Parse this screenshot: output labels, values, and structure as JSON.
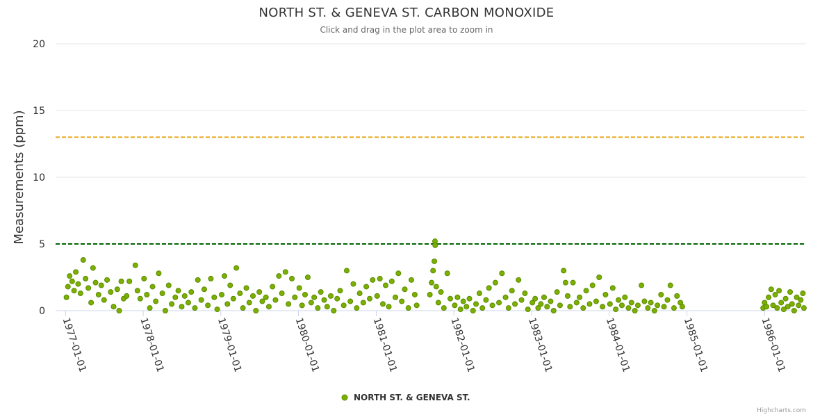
{
  "chart_data": {
    "type": "scatter",
    "title": "NORTH ST. & GENEVA ST. CARBON MONOXIDE",
    "subtitle": "Click and drag in the plot area to zoom in",
    "ylabel": "Measurements (ppm)",
    "xlabel": "",
    "ylim": [
      0,
      20
    ],
    "yticks": [
      0,
      5,
      10,
      15,
      20
    ],
    "xticks": [
      "1977-01-01",
      "1978-01-01",
      "1979-01-01",
      "1980-01-01",
      "1981-01-01",
      "1982-01-01",
      "1983-01-01",
      "1984-01-01",
      "1985-01-01",
      "1986-01-01"
    ],
    "xlim": [
      "1976-11-15",
      "1986-07-15"
    ],
    "plot_lines": [
      {
        "value": 13,
        "color": "#E6A817",
        "style": "dashed"
      },
      {
        "value": 5,
        "color": "#006400",
        "style": "dashed"
      }
    ],
    "legend_position": "bottom-center",
    "grid": true,
    "series": [
      {
        "name": "NORTH ST. & GENEVA ST.",
        "color": "#7CB000",
        "points": [
          [
            "1977-01-05",
            1.0
          ],
          [
            "1977-01-12",
            1.8
          ],
          [
            "1977-01-20",
            2.6
          ],
          [
            "1977-02-01",
            2.2
          ],
          [
            "1977-02-10",
            1.5
          ],
          [
            "1977-02-18",
            2.9
          ],
          [
            "1977-03-01",
            2.0
          ],
          [
            "1977-03-12",
            1.3
          ],
          [
            "1977-03-25",
            3.8
          ],
          [
            "1977-04-05",
            2.4
          ],
          [
            "1977-04-18",
            1.7
          ],
          [
            "1977-05-01",
            0.6
          ],
          [
            "1977-05-10",
            3.2
          ],
          [
            "1977-05-22",
            2.1
          ],
          [
            "1977-06-05",
            1.2
          ],
          [
            "1977-06-18",
            1.9
          ],
          [
            "1977-07-01",
            0.8
          ],
          [
            "1977-07-15",
            2.3
          ],
          [
            "1977-08-01",
            1.4
          ],
          [
            "1977-08-15",
            0.3
          ],
          [
            "1977-09-01",
            1.6
          ],
          [
            "1977-09-10",
            0.0
          ],
          [
            "1977-09-20",
            2.2
          ],
          [
            "1977-10-01",
            0.9
          ],
          [
            "1977-10-15",
            1.1
          ],
          [
            "1977-10-28",
            2.2
          ],
          [
            "1977-11-25",
            3.4
          ],
          [
            "1977-12-05",
            1.5
          ],
          [
            "1977-12-18",
            0.9
          ],
          [
            "1978-01-05",
            2.4
          ],
          [
            "1978-01-18",
            1.2
          ],
          [
            "1978-02-01",
            0.2
          ],
          [
            "1978-02-14",
            1.8
          ],
          [
            "1978-03-01",
            0.7
          ],
          [
            "1978-03-15",
            2.8
          ],
          [
            "1978-04-01",
            1.3
          ],
          [
            "1978-04-15",
            0.0
          ],
          [
            "1978-05-01",
            1.9
          ],
          [
            "1978-05-15",
            0.5
          ],
          [
            "1978-06-01",
            1.0
          ],
          [
            "1978-06-15",
            1.5
          ],
          [
            "1978-07-01",
            0.3
          ],
          [
            "1978-07-15",
            1.1
          ],
          [
            "1978-08-01",
            0.6
          ],
          [
            "1978-08-15",
            1.4
          ],
          [
            "1978-09-01",
            0.2
          ],
          [
            "1978-09-15",
            2.3
          ],
          [
            "1978-10-01",
            0.8
          ],
          [
            "1978-10-15",
            1.6
          ],
          [
            "1978-11-01",
            0.4
          ],
          [
            "1978-11-15",
            2.4
          ],
          [
            "1978-12-01",
            1.0
          ],
          [
            "1978-12-15",
            0.1
          ],
          [
            "1979-01-05",
            1.2
          ],
          [
            "1979-01-18",
            2.6
          ],
          [
            "1979-02-01",
            0.5
          ],
          [
            "1979-02-14",
            1.9
          ],
          [
            "1979-03-01",
            0.9
          ],
          [
            "1979-03-15",
            3.2
          ],
          [
            "1979-04-01",
            1.3
          ],
          [
            "1979-04-15",
            0.2
          ],
          [
            "1979-05-01",
            1.7
          ],
          [
            "1979-05-15",
            0.6
          ],
          [
            "1979-06-01",
            1.1
          ],
          [
            "1979-06-15",
            0.0
          ],
          [
            "1979-07-01",
            1.4
          ],
          [
            "1979-07-15",
            0.7
          ],
          [
            "1979-08-01",
            1.0
          ],
          [
            "1979-08-15",
            0.3
          ],
          [
            "1979-09-01",
            1.8
          ],
          [
            "1979-09-15",
            0.8
          ],
          [
            "1979-10-01",
            2.6
          ],
          [
            "1979-10-15",
            1.3
          ],
          [
            "1979-11-01",
            2.9
          ],
          [
            "1979-11-15",
            0.5
          ],
          [
            "1979-12-01",
            2.4
          ],
          [
            "1979-12-15",
            1.0
          ],
          [
            "1980-01-05",
            1.7
          ],
          [
            "1980-01-18",
            0.4
          ],
          [
            "1980-02-01",
            1.2
          ],
          [
            "1980-02-14",
            2.5
          ],
          [
            "1980-03-01",
            0.6
          ],
          [
            "1980-03-15",
            1.0
          ],
          [
            "1980-04-01",
            0.2
          ],
          [
            "1980-04-15",
            1.4
          ],
          [
            "1980-05-01",
            0.8
          ],
          [
            "1980-05-15",
            0.3
          ],
          [
            "1980-06-01",
            1.1
          ],
          [
            "1980-06-15",
            0.0
          ],
          [
            "1980-07-01",
            0.9
          ],
          [
            "1980-07-15",
            1.5
          ],
          [
            "1980-08-01",
            0.4
          ],
          [
            "1980-08-15",
            3.0
          ],
          [
            "1980-09-01",
            0.7
          ],
          [
            "1980-09-15",
            2.0
          ],
          [
            "1980-10-01",
            0.2
          ],
          [
            "1980-10-15",
            1.3
          ],
          [
            "1980-11-01",
            0.6
          ],
          [
            "1980-11-15",
            1.8
          ],
          [
            "1980-12-01",
            0.9
          ],
          [
            "1980-12-15",
            2.3
          ],
          [
            "1981-01-05",
            1.1
          ],
          [
            "1981-01-18",
            2.4
          ],
          [
            "1981-02-01",
            0.5
          ],
          [
            "1981-02-14",
            1.9
          ],
          [
            "1981-03-01",
            0.3
          ],
          [
            "1981-03-15",
            2.2
          ],
          [
            "1981-04-01",
            1.0
          ],
          [
            "1981-04-15",
            2.8
          ],
          [
            "1981-05-01",
            0.7
          ],
          [
            "1981-05-15",
            1.6
          ],
          [
            "1981-06-01",
            0.2
          ],
          [
            "1981-06-15",
            2.3
          ],
          [
            "1981-07-01",
            1.2
          ],
          [
            "1981-07-10",
            0.4
          ],
          [
            "1981-09-10",
            1.2
          ],
          [
            "1981-09-18",
            2.1
          ],
          [
            "1981-09-25",
            3.0
          ],
          [
            "1981-10-01",
            3.7
          ],
          [
            "1981-10-04",
            5.2
          ],
          [
            "1981-10-05",
            4.9
          ],
          [
            "1981-10-10",
            1.8
          ],
          [
            "1981-10-20",
            0.6
          ],
          [
            "1981-11-01",
            1.4
          ],
          [
            "1981-11-15",
            0.2
          ],
          [
            "1981-12-01",
            2.8
          ],
          [
            "1981-12-15",
            0.9
          ],
          [
            "1982-01-05",
            0.4
          ],
          [
            "1982-01-18",
            1.0
          ],
          [
            "1982-02-01",
            0.1
          ],
          [
            "1982-02-14",
            0.7
          ],
          [
            "1982-03-01",
            0.3
          ],
          [
            "1982-03-15",
            0.9
          ],
          [
            "1982-04-01",
            0.0
          ],
          [
            "1982-04-15",
            0.5
          ],
          [
            "1982-05-01",
            1.3
          ],
          [
            "1982-05-15",
            0.2
          ],
          [
            "1982-06-01",
            0.8
          ],
          [
            "1982-06-15",
            1.7
          ],
          [
            "1982-07-01",
            0.4
          ],
          [
            "1982-07-15",
            2.1
          ],
          [
            "1982-08-01",
            0.6
          ],
          [
            "1982-08-15",
            2.8
          ],
          [
            "1982-09-01",
            1.0
          ],
          [
            "1982-09-15",
            0.2
          ],
          [
            "1982-10-01",
            1.5
          ],
          [
            "1982-10-15",
            0.5
          ],
          [
            "1982-11-01",
            2.3
          ],
          [
            "1982-11-15",
            0.8
          ],
          [
            "1982-12-01",
            1.3
          ],
          [
            "1982-12-15",
            0.1
          ],
          [
            "1983-01-05",
            0.6
          ],
          [
            "1983-01-18",
            0.9
          ],
          [
            "1983-02-01",
            0.2
          ],
          [
            "1983-02-14",
            0.5
          ],
          [
            "1983-03-01",
            1.0
          ],
          [
            "1983-03-15",
            0.3
          ],
          [
            "1983-04-01",
            0.7
          ],
          [
            "1983-04-15",
            0.0
          ],
          [
            "1983-05-01",
            1.4
          ],
          [
            "1983-05-15",
            0.4
          ],
          [
            "1983-06-01",
            3.0
          ],
          [
            "1983-06-10",
            2.1
          ],
          [
            "1983-06-20",
            1.1
          ],
          [
            "1983-07-01",
            0.3
          ],
          [
            "1983-07-15",
            2.1
          ],
          [
            "1983-08-01",
            0.6
          ],
          [
            "1983-08-15",
            1.0
          ],
          [
            "1983-09-01",
            0.2
          ],
          [
            "1983-09-15",
            1.5
          ],
          [
            "1983-10-01",
            0.5
          ],
          [
            "1983-10-15",
            1.9
          ],
          [
            "1983-11-01",
            0.7
          ],
          [
            "1983-11-15",
            2.5
          ],
          [
            "1983-12-01",
            0.3
          ],
          [
            "1983-12-15",
            1.2
          ],
          [
            "1984-01-05",
            0.5
          ],
          [
            "1984-01-18",
            1.7
          ],
          [
            "1984-02-01",
            0.1
          ],
          [
            "1984-02-14",
            0.8
          ],
          [
            "1984-03-01",
            0.4
          ],
          [
            "1984-03-15",
            1.0
          ],
          [
            "1984-04-01",
            0.2
          ],
          [
            "1984-04-15",
            0.6
          ],
          [
            "1984-05-01",
            0.0
          ],
          [
            "1984-05-15",
            0.4
          ],
          [
            "1984-06-01",
            1.9
          ],
          [
            "1984-06-15",
            0.7
          ],
          [
            "1984-07-01",
            0.2
          ],
          [
            "1984-07-15",
            0.6
          ],
          [
            "1984-08-01",
            0.0
          ],
          [
            "1984-08-15",
            0.4
          ],
          [
            "1984-09-01",
            1.2
          ],
          [
            "1984-09-15",
            0.3
          ],
          [
            "1984-10-01",
            0.8
          ],
          [
            "1984-10-15",
            1.9
          ],
          [
            "1984-11-01",
            0.2
          ],
          [
            "1984-11-15",
            1.1
          ],
          [
            "1984-12-01",
            0.6
          ],
          [
            "1984-12-10",
            0.3
          ],
          [
            "1985-12-25",
            0.2
          ],
          [
            "1986-01-01",
            0.6
          ],
          [
            "1986-01-10",
            0.3
          ],
          [
            "1986-01-20",
            1.0
          ],
          [
            "1986-02-01",
            1.6
          ],
          [
            "1986-02-10",
            0.4
          ],
          [
            "1986-02-20",
            1.2
          ],
          [
            "1986-03-01",
            0.2
          ],
          [
            "1986-03-10",
            1.5
          ],
          [
            "1986-03-20",
            0.6
          ],
          [
            "1986-04-01",
            0.1
          ],
          [
            "1986-04-10",
            0.9
          ],
          [
            "1986-04-20",
            0.3
          ],
          [
            "1986-05-01",
            1.4
          ],
          [
            "1986-05-10",
            0.5
          ],
          [
            "1986-05-20",
            0.0
          ],
          [
            "1986-06-01",
            1.0
          ],
          [
            "1986-06-10",
            0.4
          ],
          [
            "1986-06-20",
            0.8
          ],
          [
            "1986-06-30",
            1.3
          ],
          [
            "1986-07-05",
            0.2
          ]
        ]
      }
    ]
  },
  "footer": {
    "credits": "Highcharts.com"
  }
}
